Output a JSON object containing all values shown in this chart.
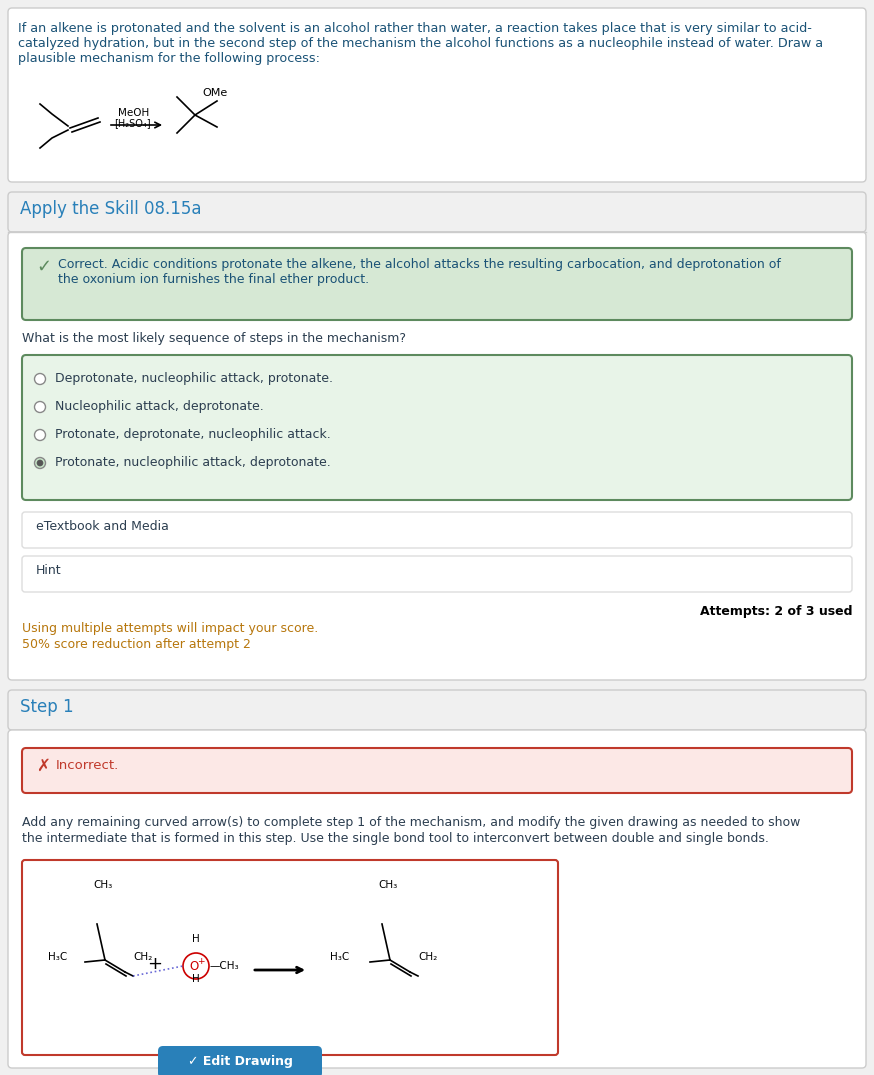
{
  "bg_color": "#f0f0f0",
  "white": "#ffffff",
  "section1_text_line1": "If an alkene is protonated and the solvent is an alcohol rather than water, a reaction takes place that is very similar to acid-",
  "section1_text_line2": "catalyzed hydration, but in the second step of the mechanism the alcohol functions as a nucleophile instead of water. Draw a",
  "section1_text_line3": "plausible mechanism for the following process:",
  "section1_text_color": "#1a5276",
  "section2_header": "Apply the Skill 08.15a",
  "section2_header_color": "#2980b9",
  "correct_box_bg": "#d6e8d4",
  "correct_box_border": "#5d8a5e",
  "correct_text_line1": "Correct. Acidic conditions protonate the alkene, the alcohol attacks the resulting carbocation, and deprotonation of",
  "correct_text_line2": "the oxonium ion furnishes the final ether product.",
  "correct_text_color": "#1a5276",
  "check_color": "#5d8a5e",
  "question_text": "What is the most likely sequence of steps in the mechanism?",
  "question_text_color": "#2c3e50",
  "options": [
    "Deprotonate, nucleophilic attack, protonate.",
    "Nucleophilic attack, deprotonate.",
    "Protonate, deprotonate, nucleophilic attack.",
    "Protonate, nucleophilic attack, deprotonate."
  ],
  "selected_option": 3,
  "options_box_bg": "#e8f4e8",
  "options_box_border": "#5d8a5e",
  "etextbook_text": "eTextbook and Media",
  "hint_text": "Hint",
  "attempts_text": "Attempts: 2 of 3 used",
  "warning_text_line1": "Using multiple attempts will impact your score.",
  "warning_text_line2": "50% score reduction after attempt 2",
  "warning_color": "#b7770d",
  "step1_header": "Step 1",
  "step1_header_color": "#2980b9",
  "incorrect_box_bg": "#fce8e6",
  "incorrect_box_border": "#c0392b",
  "incorrect_text": "Incorrect.",
  "incorrect_text_color": "#c0392b",
  "step1_desc_line1": "Add any remaining curved arrow(s) to complete step 1 of the mechanism, and modify the given drawing as needed to show",
  "step1_desc_line2": "the intermediate that is formed in this step. Use the single bond tool to interconvert between double and single bonds.",
  "step1_desc_color": "#2c3e50",
  "edit_btn_color": "#2980b9",
  "outer_border_color": "#cccccc",
  "inner_border_color": "#dddddd",
  "section_divider_color": "#cccccc"
}
